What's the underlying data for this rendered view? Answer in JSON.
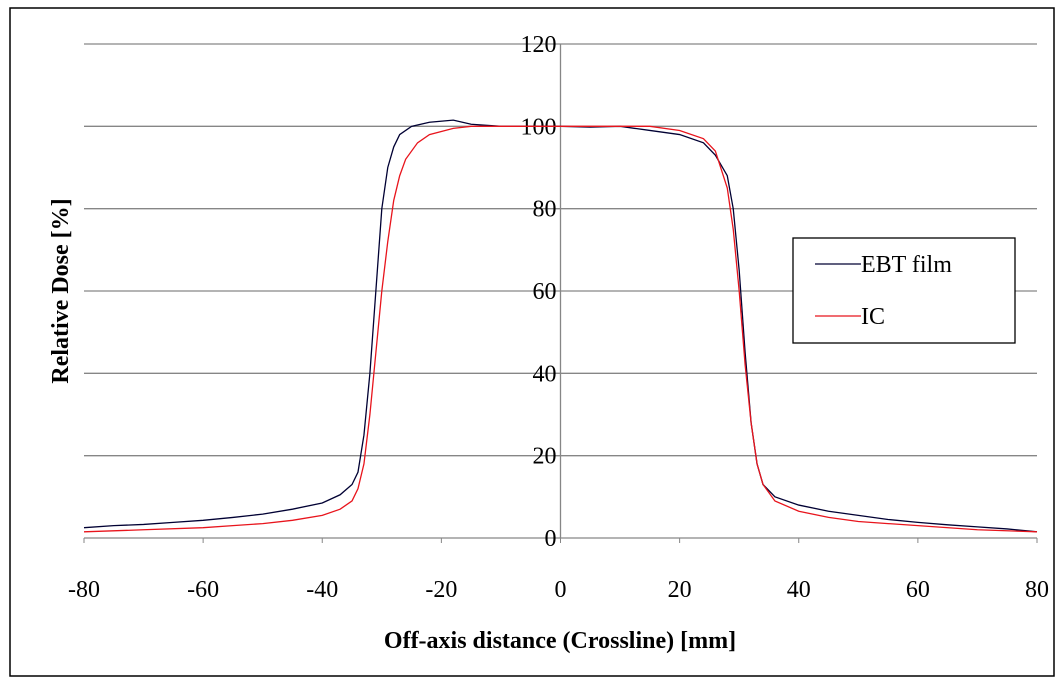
{
  "chart_data": {
    "type": "line",
    "x_label": "Off-axis distance (Crossline) [mm]",
    "y_label": "Relative Dose [%]",
    "xlim": [
      -80,
      80
    ],
    "xticks": [
      -80,
      -60,
      -40,
      -20,
      0,
      20,
      40,
      60,
      80
    ],
    "ylim": [
      0,
      120
    ],
    "yticks": [
      0,
      20,
      40,
      60,
      80,
      100,
      120
    ],
    "grid": true,
    "legend": "right",
    "series": [
      {
        "name": "EBT film",
        "color": "#000033",
        "x": [
          -80,
          -75,
          -70,
          -65,
          -60,
          -55,
          -50,
          -45,
          -40,
          -37,
          -35,
          -34,
          -33,
          -32,
          -31,
          -30,
          -29,
          -28,
          -27,
          -25,
          -22,
          -18,
          -15,
          -10,
          -5,
          0,
          5,
          10,
          15,
          20,
          24,
          26,
          28,
          29,
          30,
          31,
          32,
          33,
          34,
          36,
          40,
          45,
          50,
          55,
          60,
          65,
          70,
          75,
          80
        ],
        "values": [
          2.5,
          3,
          3.3,
          3.8,
          4.3,
          5,
          5.8,
          7,
          8.5,
          10.5,
          13,
          16,
          25,
          40,
          60,
          80,
          90,
          95,
          98,
          100,
          101,
          101.5,
          100.5,
          100,
          100,
          100,
          99.8,
          100,
          99,
          98,
          96,
          93,
          88,
          80,
          65,
          45,
          28,
          18,
          13,
          10,
          8,
          6.5,
          5.5,
          4.5,
          3.8,
          3.2,
          2.7,
          2.2,
          1.5
        ]
      },
      {
        "name": "IC",
        "color": "#e8141c",
        "x": [
          -80,
          -70,
          -60,
          -55,
          -50,
          -45,
          -40,
          -37,
          -35,
          -34,
          -33,
          -32,
          -31,
          -30,
          -29,
          -28,
          -27,
          -26,
          -24,
          -22,
          -18,
          -15,
          -10,
          0,
          10,
          15,
          20,
          24,
          26,
          28,
          29,
          30,
          31,
          32,
          33,
          34,
          36,
          40,
          45,
          50,
          55,
          60,
          70,
          80
        ],
        "values": [
          1.5,
          2,
          2.5,
          3,
          3.5,
          4.3,
          5.5,
          7,
          9,
          12,
          18,
          30,
          45,
          60,
          72,
          82,
          88,
          92,
          96,
          98,
          99.5,
          100,
          100,
          100,
          100,
          100,
          99,
          97,
          94,
          85,
          75,
          60,
          42,
          28,
          18,
          13,
          9,
          6.5,
          5,
          4,
          3.5,
          3,
          2,
          1.5
        ]
      }
    ]
  }
}
